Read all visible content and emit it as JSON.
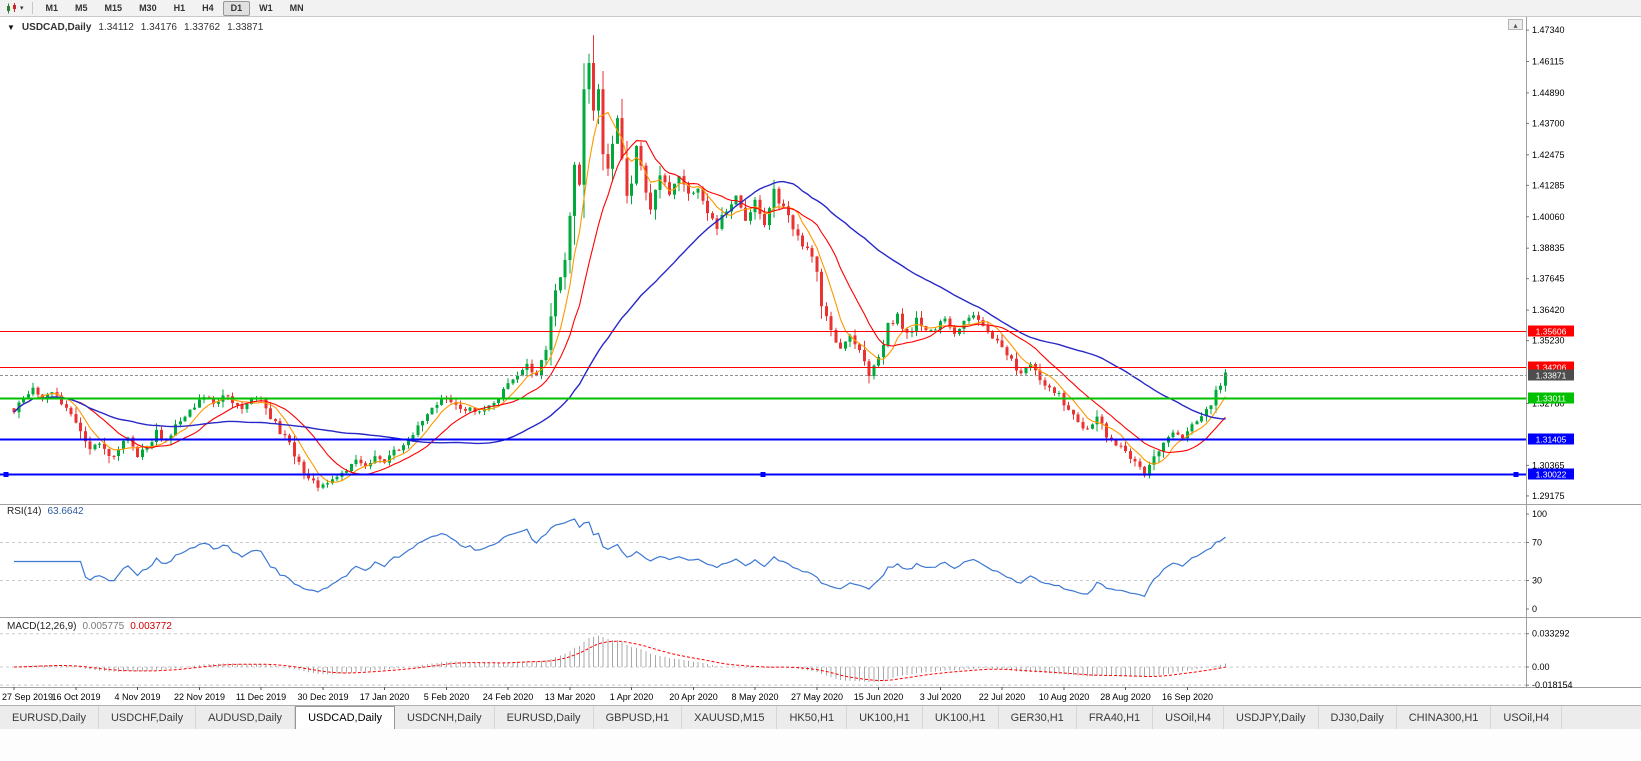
{
  "icons": {
    "toolbar_caret": "▾",
    "title_caret": "▼",
    "scroll_up": "▴"
  },
  "toolbar": {
    "timeframes": [
      "M1",
      "M5",
      "M15",
      "M30",
      "H1",
      "H4",
      "D1",
      "W1",
      "MN"
    ],
    "active_timeframe": "D1"
  },
  "chart": {
    "title_symbol": "USDCAD,Daily",
    "ohlc": {
      "open": "1.34112",
      "high": "1.34176",
      "low": "1.33762",
      "close": "1.33871"
    },
    "colors": {
      "bull": "#00A93C",
      "bear": "#E93232",
      "ma_fast": "#FF9800",
      "ma_mid": "#FF0000",
      "ma_slow": "#2828C8",
      "rsi_line": "#3C78D2",
      "macd_hist": "#A8A8A8",
      "macd_signal": "#FF0000",
      "grid": "#C8C8C8",
      "divider": "#A0A0A0",
      "axis_text": "#000000",
      "current_price_line": "#909090"
    },
    "y_ticks": [
      "1.47340",
      "1.46115",
      "1.44890",
      "1.43700",
      "1.42475",
      "1.41285",
      "1.40060",
      "1.38835",
      "1.37645",
      "1.36420",
      "1.35230",
      "1.32780",
      "1.30365",
      "1.29175"
    ],
    "hlines": [
      {
        "price": 1.35606,
        "label": "1.35606",
        "color": "#FF0000",
        "width": 1,
        "selected": false
      },
      {
        "price": 1.34206,
        "label": "1.34206",
        "color": "#FF0000",
        "width": 1,
        "selected": false
      },
      {
        "price": 1.33011,
        "label": "1.33011",
        "color": "#00C000",
        "width": 2,
        "selected": false
      },
      {
        "price": 1.31405,
        "label": "1.31405",
        "color": "#0000FF",
        "width": 2,
        "selected": false
      },
      {
        "price": 1.30022,
        "label": "1.30022",
        "color": "#0000FF",
        "width": 2,
        "selected": true
      }
    ],
    "current_price": {
      "value": 1.33871,
      "label": "1.33871",
      "badge_color": "#4D4D4D"
    }
  },
  "rsi_panel": {
    "name": "RSI(14)",
    "value": "63.6642",
    "levels": [
      "100",
      "70",
      "30",
      "0"
    ],
    "level_values": [
      100,
      70,
      30,
      0
    ]
  },
  "macd_panel": {
    "name": "MACD(12,26,9)",
    "main_value": "0.005775",
    "signal_value": "0.003772",
    "axis_labels": [
      "0.033292",
      "0.00",
      "-0.018154"
    ],
    "axis_values": [
      0.033292,
      0,
      -0.018154
    ]
  },
  "chart_data": {
    "type": "candlestick",
    "symbol": "USDCAD",
    "timeframe": "Daily",
    "x_gridline_dates": [
      "27 Sep 2019",
      "16 Oct 2019",
      "4 Nov 2019",
      "22 Nov 2019",
      "11 Dec 2019",
      "30 Dec 2019",
      "17 Jan 2020",
      "5 Feb 2020",
      "24 Feb 2020",
      "13 Mar 2020",
      "1 Apr 2020",
      "20 Apr 2020",
      "8 May 2020",
      "27 May 2020",
      "15 Jun 2020",
      "3 Jul 2020",
      "22 Jul 2020",
      "10 Aug 2020",
      "28 Aug 2020",
      "16 Sep 2020"
    ],
    "candles_per_gridline": 13,
    "num_candles": 256,
    "y_range": [
      1.2886,
      1.4785
    ],
    "price_path": [
      [
        0,
        1.325
      ],
      [
        2,
        1.3295
      ],
      [
        4,
        1.333
      ],
      [
        6,
        1.3305
      ],
      [
        8,
        1.332
      ],
      [
        10,
        1.328
      ],
      [
        12,
        1.324
      ],
      [
        14,
        1.316
      ],
      [
        16,
        1.3095
      ],
      [
        18,
        1.313
      ],
      [
        20,
        1.3065
      ],
      [
        22,
        1.31
      ],
      [
        24,
        1.3145
      ],
      [
        26,
        1.308
      ],
      [
        28,
        1.3105
      ],
      [
        30,
        1.316
      ],
      [
        32,
        1.3145
      ],
      [
        34,
        1.319
      ],
      [
        36,
        1.323
      ],
      [
        38,
        1.327
      ],
      [
        40,
        1.33
      ],
      [
        42,
        1.328
      ],
      [
        44,
        1.331
      ],
      [
        46,
        1.329
      ],
      [
        48,
        1.3255
      ],
      [
        50,
        1.3285
      ],
      [
        52,
        1.33
      ],
      [
        54,
        1.323
      ],
      [
        56,
        1.317
      ],
      [
        58,
        1.312
      ],
      [
        60,
        1.305
      ],
      [
        62,
        1.298
      ],
      [
        64,
        1.2955
      ],
      [
        66,
        1.297
      ],
      [
        68,
        1.299
      ],
      [
        70,
        1.301
      ],
      [
        72,
        1.306
      ],
      [
        74,
        1.304
      ],
      [
        76,
        1.307
      ],
      [
        78,
        1.3055
      ],
      [
        80,
        1.309
      ],
      [
        82,
        1.311
      ],
      [
        84,
        1.316
      ],
      [
        86,
        1.322
      ],
      [
        88,
        1.326
      ],
      [
        90,
        1.33
      ],
      [
        92,
        1.328
      ],
      [
        94,
        1.3245
      ],
      [
        96,
        1.3265
      ],
      [
        98,
        1.324
      ],
      [
        100,
        1.3265
      ],
      [
        102,
        1.33
      ],
      [
        104,
        1.335
      ],
      [
        106,
        1.339
      ],
      [
        108,
        1.343
      ],
      [
        110,
        1.3385
      ],
      [
        112,
        1.348
      ],
      [
        114,
        1.372
      ],
      [
        116,
        1.385
      ],
      [
        117,
        1.398
      ],
      [
        118,
        1.428
      ],
      [
        119,
        1.415
      ],
      [
        120,
        1.448
      ],
      [
        121,
        1.464
      ],
      [
        122,
        1.439
      ],
      [
        123,
        1.452
      ],
      [
        124,
        1.428
      ],
      [
        125,
        1.418
      ],
      [
        126,
        1.428
      ],
      [
        127,
        1.438
      ],
      [
        128,
        1.422
      ],
      [
        129,
        1.409
      ],
      [
        130,
        1.416
      ],
      [
        131,
        1.428
      ],
      [
        132,
        1.42
      ],
      [
        134,
        1.405
      ],
      [
        136,
        1.417
      ],
      [
        138,
        1.41
      ],
      [
        140,
        1.418
      ],
      [
        142,
        1.408
      ],
      [
        144,
        1.413
      ],
      [
        146,
        1.403
      ],
      [
        148,
        1.397
      ],
      [
        150,
        1.404
      ],
      [
        152,
        1.41
      ],
      [
        154,
        1.399
      ],
      [
        156,
        1.406
      ],
      [
        158,
        1.397
      ],
      [
        160,
        1.41
      ],
      [
        162,
        1.404
      ],
      [
        164,
        1.395
      ],
      [
        166,
        1.39
      ],
      [
        168,
        1.385
      ],
      [
        170,
        1.368
      ],
      [
        172,
        1.356
      ],
      [
        174,
        1.35
      ],
      [
        176,
        1.354
      ],
      [
        178,
        1.348
      ],
      [
        180,
        1.339
      ],
      [
        182,
        1.345
      ],
      [
        184,
        1.357
      ],
      [
        186,
        1.362
      ],
      [
        188,
        1.354
      ],
      [
        190,
        1.36
      ],
      [
        192,
        1.355
      ],
      [
        194,
        1.357
      ],
      [
        196,
        1.361
      ],
      [
        198,
        1.355
      ],
      [
        200,
        1.359
      ],
      [
        202,
        1.362
      ],
      [
        204,
        1.358
      ],
      [
        206,
        1.354
      ],
      [
        208,
        1.35
      ],
      [
        210,
        1.344
      ],
      [
        212,
        1.339
      ],
      [
        214,
        1.343
      ],
      [
        216,
        1.337
      ],
      [
        218,
        1.334
      ],
      [
        220,
        1.331
      ],
      [
        222,
        1.326
      ],
      [
        224,
        1.321
      ],
      [
        226,
        1.317
      ],
      [
        228,
        1.323
      ],
      [
        230,
        1.316
      ],
      [
        232,
        1.312
      ],
      [
        234,
        1.309
      ],
      [
        236,
        1.304
      ],
      [
        238,
        1.3
      ],
      [
        240,
        1.307
      ],
      [
        242,
        1.313
      ],
      [
        244,
        1.317
      ],
      [
        246,
        1.315
      ],
      [
        248,
        1.319
      ],
      [
        250,
        1.322
      ],
      [
        252,
        1.328
      ],
      [
        254,
        1.336
      ],
      [
        255,
        1.3387
      ]
    ],
    "ma_periods": {
      "fast": 6,
      "mid": 14,
      "slow": 45
    },
    "rsi_period": 14,
    "macd_params": [
      12,
      26,
      9
    ]
  },
  "tabs": [
    {
      "label": "EURUSD,Daily",
      "active": false
    },
    {
      "label": "USDCHF,Daily",
      "active": false
    },
    {
      "label": "AUDUSD,Daily",
      "active": false
    },
    {
      "label": "USDCAD,Daily",
      "active": true
    },
    {
      "label": "USDCNH,Daily",
      "active": false
    },
    {
      "label": "EURUSD,Daily",
      "active": false
    },
    {
      "label": "GBPUSD,H1",
      "active": false
    },
    {
      "label": "XAUUSD,M15",
      "active": false
    },
    {
      "label": "HK50,H1",
      "active": false
    },
    {
      "label": "UK100,H1",
      "active": false
    },
    {
      "label": "UK100,H1",
      "active": false
    },
    {
      "label": "GER30,H1",
      "active": false
    },
    {
      "label": "FRA40,H1",
      "active": false
    },
    {
      "label": "USOil,H4",
      "active": false
    },
    {
      "label": "USDJPY,Daily",
      "active": false
    },
    {
      "label": "DJ30,Daily",
      "active": false
    },
    {
      "label": "CHINA300,H1",
      "active": false
    },
    {
      "label": "USOil,H4",
      "active": false
    }
  ]
}
